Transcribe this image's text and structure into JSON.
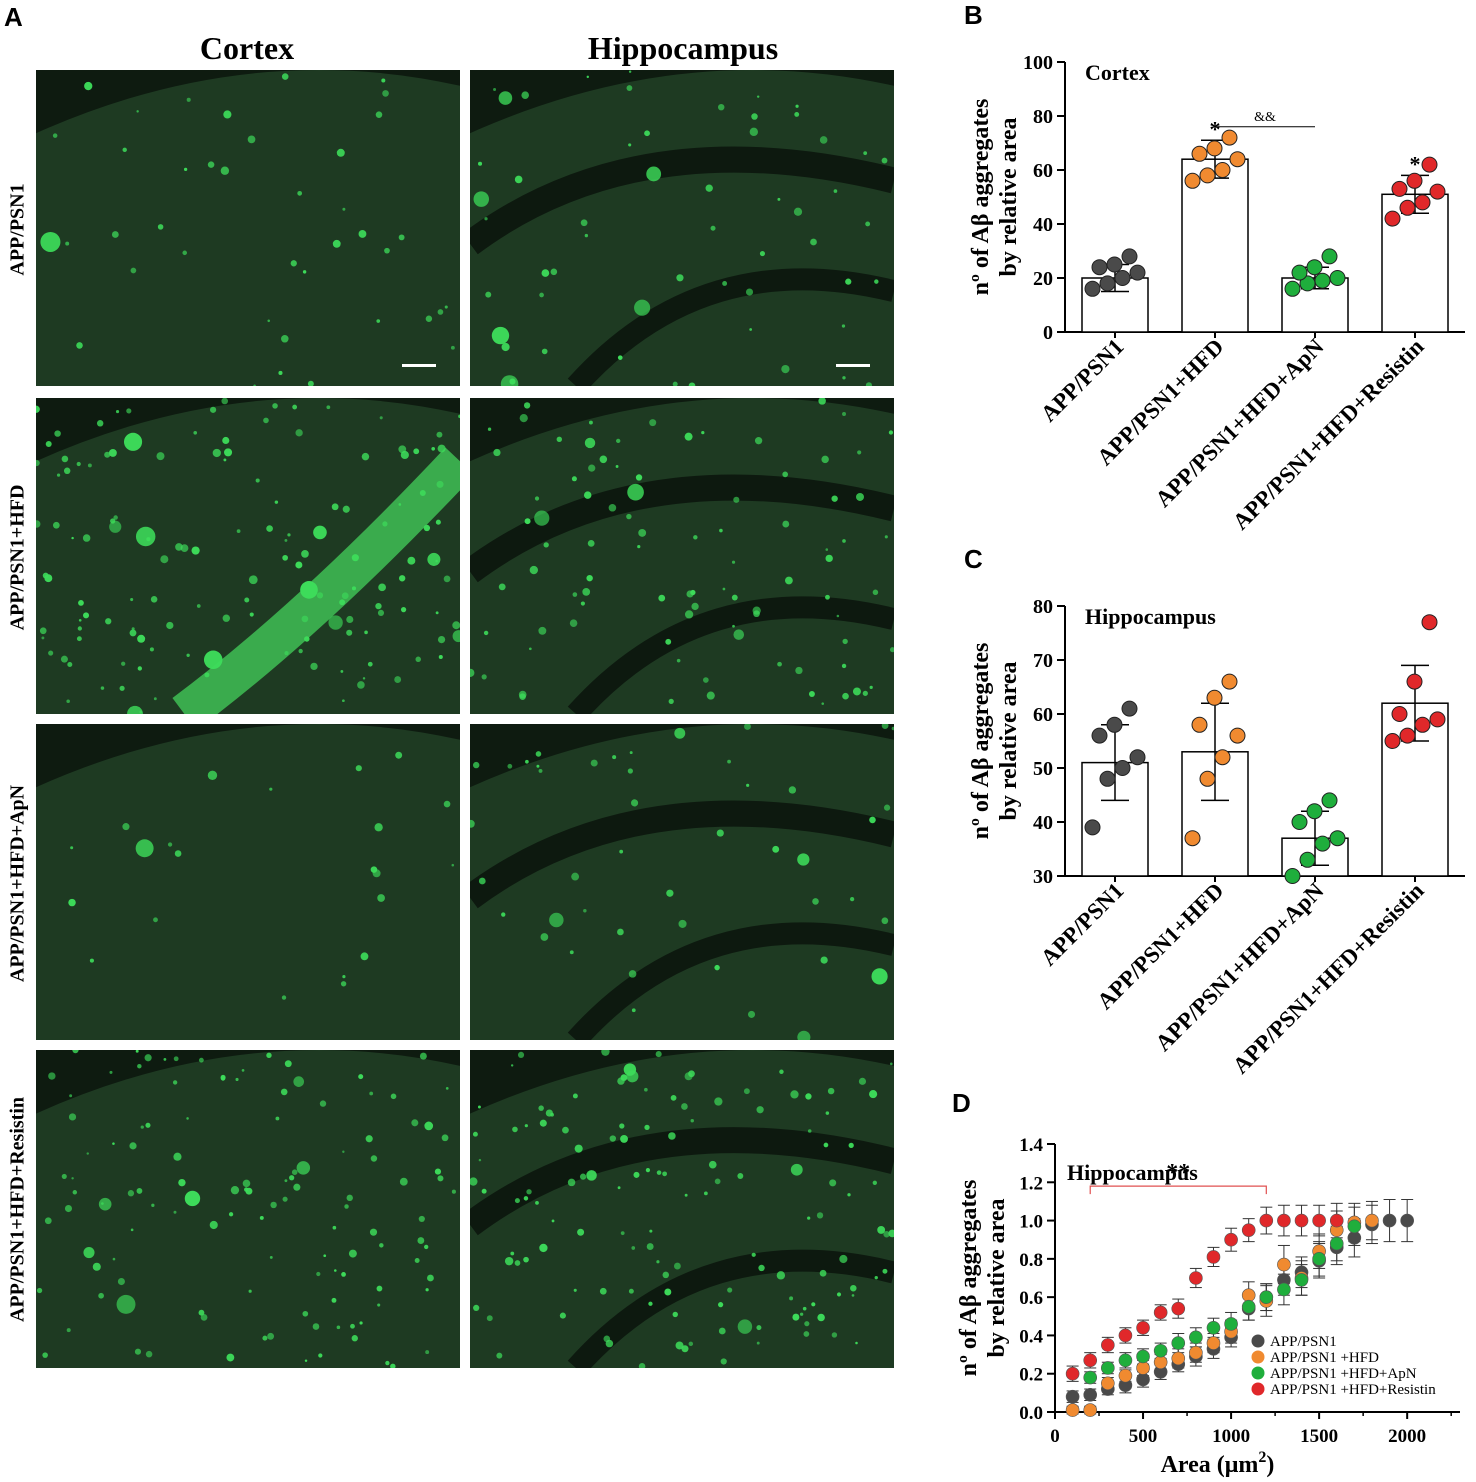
{
  "panel_letters": {
    "a": "A",
    "b": "B",
    "c": "C",
    "d": "D"
  },
  "panel_a": {
    "columns": [
      "Cortex",
      "Hippocampus"
    ],
    "rows": [
      "APP/PSN1",
      "APP/PSN1+HFD",
      "APP/PSN1+HFD+ApN",
      "APP/PSN1+HFD+Resistin"
    ],
    "tissue_color": "#1e3a22",
    "plaque_color": "#3ddc5a"
  },
  "colors": {
    "grey": "#4a4a4a",
    "orange": "#f08a30",
    "green": "#1fae3c",
    "red": "#e0282a",
    "bracket_red": "#e05050"
  },
  "chart_data": [
    {
      "type": "bar",
      "title": "Cortex",
      "ylabel_line1": "nº of Aβ aggregates",
      "ylabel_line2": "by relative area",
      "categories": [
        "APP/PSN1",
        "APP/PSN1+HFD",
        "APP/PSN1+HFD+ApN",
        "APP/PSN1+HFD+Resistin"
      ],
      "values": [
        20,
        64,
        20,
        51
      ],
      "errors": [
        5,
        7,
        4,
        7
      ],
      "point_colors": [
        "#4a4a4a",
        "#f08a30",
        "#1fae3c",
        "#e0282a"
      ],
      "points": [
        [
          16,
          18,
          20,
          22,
          24,
          25,
          28
        ],
        [
          56,
          58,
          60,
          64,
          66,
          68,
          72
        ],
        [
          16,
          18,
          19,
          20,
          22,
          24,
          28
        ],
        [
          42,
          46,
          48,
          52,
          53,
          56,
          62
        ]
      ],
      "ylim": [
        0,
        100
      ],
      "yticks": [
        0,
        20,
        40,
        60,
        80,
        100
      ],
      "annotations": [
        {
          "category": 1,
          "text": "*"
        },
        {
          "category": 3,
          "text": "*"
        }
      ],
      "bracket": {
        "from": 1,
        "to": 2,
        "y": 76,
        "text": "&&"
      }
    },
    {
      "type": "bar",
      "title": "Hippocampus",
      "ylabel_line1": "nº of Aβ aggregates",
      "ylabel_line2": "by relative area",
      "categories": [
        "APP/PSN1",
        "APP/PSN1+HFD",
        "APP/PSN1+HFD+ApN",
        "APP/PSN1+HFD+Resistin"
      ],
      "values": [
        51,
        53,
        37,
        62
      ],
      "errors": [
        7,
        9,
        5,
        7
      ],
      "point_colors": [
        "#4a4a4a",
        "#f08a30",
        "#1fae3c",
        "#e0282a"
      ],
      "points": [
        [
          39,
          48,
          50,
          52,
          56,
          58,
          61
        ],
        [
          37,
          48,
          52,
          56,
          58,
          63,
          66
        ],
        [
          30,
          33,
          36,
          37,
          40,
          42,
          44
        ],
        [
          55,
          56,
          58,
          59,
          60,
          66,
          77
        ]
      ],
      "ylim": [
        30,
        80
      ],
      "yticks": [
        30,
        40,
        50,
        60,
        70,
        80
      ]
    },
    {
      "type": "scatter",
      "title": "Hippocampus",
      "xlabel": "Area (μm",
      "xlabel_sup": "2",
      "xlabel_end": ")",
      "ylabel_line1": "nº of Aβ aggregates",
      "ylabel_line2": "by relative area",
      "xlim": [
        0,
        2300
      ],
      "ylim": [
        0,
        1.4
      ],
      "xticks": [
        0,
        500,
        1000,
        1500,
        2000
      ],
      "yticks": [
        "0.0",
        "0.2",
        "0.4",
        "0.6",
        "0.8",
        "1.0",
        "1.2",
        "1.4"
      ],
      "significance": {
        "text": "**",
        "x_from": 200,
        "x_to": 1200,
        "y": 1.18
      },
      "legend_position": "bottom-right",
      "series": [
        {
          "name": "APP/PSN1",
          "color": "#4a4a4a",
          "x": [
            100,
            200,
            300,
            400,
            500,
            600,
            700,
            800,
            900,
            1000,
            1100,
            1200,
            1300,
            1400,
            1500,
            1600,
            1700,
            1800,
            1900,
            2000
          ],
          "y": [
            0.08,
            0.09,
            0.12,
            0.14,
            0.17,
            0.21,
            0.25,
            0.29,
            0.33,
            0.39,
            0.54,
            0.6,
            0.69,
            0.73,
            0.79,
            0.86,
            0.91,
            0.98,
            1.0,
            1.0
          ],
          "err": [
            0.03,
            0.03,
            0.03,
            0.04,
            0.04,
            0.04,
            0.04,
            0.05,
            0.05,
            0.05,
            0.06,
            0.07,
            0.08,
            0.08,
            0.09,
            0.09,
            0.1,
            0.1,
            0.11,
            0.11
          ]
        },
        {
          "name": "APP/PSN1 +HFD",
          "color": "#f08a30",
          "x": [
            100,
            200,
            300,
            400,
            500,
            600,
            700,
            800,
            900,
            1000,
            1100,
            1200,
            1300,
            1400,
            1500,
            1600,
            1700,
            1800
          ],
          "y": [
            0.01,
            0.01,
            0.15,
            0.19,
            0.23,
            0.26,
            0.28,
            0.31,
            0.36,
            0.42,
            0.61,
            0.58,
            0.77,
            0.7,
            0.84,
            0.95,
            0.99,
            1.0
          ],
          "err": [
            0.02,
            0.02,
            0.03,
            0.03,
            0.04,
            0.04,
            0.05,
            0.05,
            0.05,
            0.06,
            0.07,
            0.08,
            0.1,
            0.09,
            0.09,
            0.1,
            0.1,
            0.1
          ]
        },
        {
          "name": "APP/PSN1 +HFD+ApN",
          "color": "#1fae3c",
          "x": [
            200,
            300,
            400,
            500,
            600,
            700,
            800,
            900,
            1000,
            1100,
            1200,
            1300,
            1400,
            1500,
            1600,
            1700
          ],
          "y": [
            0.18,
            0.23,
            0.27,
            0.29,
            0.32,
            0.36,
            0.39,
            0.44,
            0.46,
            0.55,
            0.6,
            0.64,
            0.69,
            0.8,
            0.88,
            0.97
          ],
          "err": [
            0.03,
            0.03,
            0.04,
            0.04,
            0.04,
            0.05,
            0.05,
            0.05,
            0.06,
            0.07,
            0.07,
            0.08,
            0.08,
            0.09,
            0.09,
            0.1
          ]
        },
        {
          "name": "APP/PSN1 +HFD+Resistin",
          "color": "#e0282a",
          "x": [
            100,
            200,
            300,
            400,
            500,
            600,
            700,
            800,
            900,
            1000,
            1100,
            1200,
            1300,
            1400,
            1500,
            1600
          ],
          "y": [
            0.2,
            0.27,
            0.35,
            0.4,
            0.44,
            0.52,
            0.54,
            0.7,
            0.81,
            0.9,
            0.95,
            1.0,
            1.0,
            1.0,
            1.0,
            1.0
          ],
          "err": [
            0.04,
            0.04,
            0.04,
            0.04,
            0.04,
            0.04,
            0.05,
            0.05,
            0.05,
            0.06,
            0.06,
            0.07,
            0.08,
            0.08,
            0.08,
            0.09
          ]
        }
      ]
    }
  ]
}
